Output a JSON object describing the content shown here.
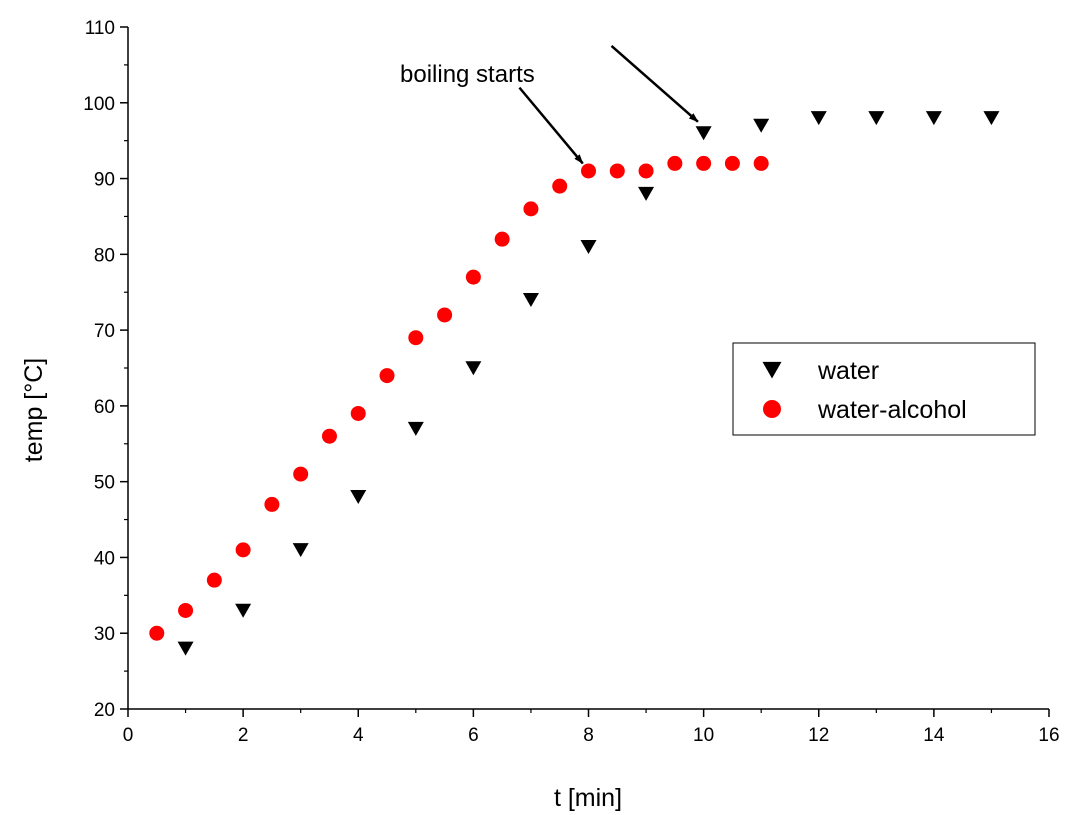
{
  "chart_data": {
    "type": "scatter",
    "title": "",
    "xlabel": "t [min]",
    "ylabel": "temp [°C]",
    "xlim": [
      0,
      16
    ],
    "ylim": [
      20,
      110
    ],
    "xticks": [
      0,
      2,
      4,
      6,
      8,
      10,
      12,
      14,
      16
    ],
    "yticks": [
      20,
      30,
      40,
      50,
      60,
      70,
      80,
      90,
      100,
      110
    ],
    "grid": false,
    "legend_position": "right",
    "series": [
      {
        "name": "water",
        "marker": "triangle-down",
        "color": "#000000",
        "x": [
          1,
          2,
          3,
          4,
          5,
          6,
          7,
          8,
          9,
          10,
          11,
          12,
          13,
          14,
          15
        ],
        "y": [
          28,
          33,
          41,
          48,
          57,
          65,
          74,
          81,
          88,
          96,
          97,
          98,
          98,
          98,
          98
        ]
      },
      {
        "name": "water-alcohol",
        "marker": "circle",
        "color": "#ff0000",
        "x": [
          0.5,
          1,
          1.5,
          2,
          2.5,
          3,
          3.5,
          4,
          4.5,
          5,
          5.5,
          6,
          6.5,
          7,
          7.5,
          8,
          8.5,
          9,
          9.5,
          10,
          10.5,
          11
        ],
        "y": [
          30,
          33,
          37,
          41,
          47,
          51,
          56,
          59,
          64,
          69,
          72,
          77,
          82,
          86,
          89,
          91,
          91,
          91,
          92,
          92,
          92,
          92
        ]
      }
    ],
    "annotations": [
      {
        "text": "boiling starts",
        "arrows": [
          {
            "from": [
              6.8,
              102
            ],
            "to": [
              7.9,
              92
            ]
          },
          {
            "from": [
              8.4,
              107.5
            ],
            "to": [
              9.9,
              97.5
            ]
          }
        ]
      }
    ]
  }
}
